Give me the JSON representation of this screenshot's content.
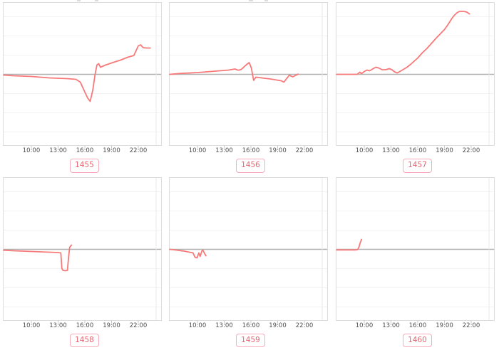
{
  "page": {
    "background": "#ffffff"
  },
  "colors": {
    "line": "#f87979",
    "zero_line": "#b0b0b0",
    "gridline": "#f3f3f3",
    "midnight_gridline": "#e8e8e8",
    "panel_border": "#dddddd",
    "tick_mark": "#c9c9c9",
    "tick_label": "#4d4d4d",
    "badge_border": "#f8abba",
    "badge_text": "#e8606e"
  },
  "chart_data": {
    "type": "line",
    "note": "grid of 6 sparkline charts; y values are relative units (no y-axis labels shown), baseline 0 is the gray center line",
    "x_unit": "hour-of-day",
    "xlim": [
      6.8,
      24.65
    ],
    "ylim": [
      -1,
      1
    ],
    "x_tick_hours": [
      10,
      13,
      16,
      19,
      22
    ],
    "x_tick_labels": [
      "10:00",
      "13:00",
      "16:00",
      "19:00",
      "22:00"
    ],
    "midnight_gridline_hour": 24,
    "h_gridlines_rel": [
      -0.81,
      -0.54,
      -0.27,
      0,
      0.27,
      0.54,
      0.81
    ],
    "legend": "none",
    "series": [
      {
        "badge": "1455",
        "x": [
          6.8,
          8.0,
          10.0,
          12.0,
          14.0,
          15.0,
          15.5,
          16.0,
          16.3,
          16.6,
          16.9,
          17.15,
          17.35,
          17.55,
          17.75,
          18.3,
          19.0,
          20.0,
          20.8,
          21.5,
          22.0,
          22.25,
          22.55,
          22.9,
          23.35
        ],
        "y": [
          -0.01,
          -0.02,
          -0.03,
          -0.05,
          -0.06,
          -0.07,
          -0.11,
          -0.25,
          -0.33,
          -0.38,
          -0.22,
          0.0,
          0.13,
          0.15,
          0.1,
          0.13,
          0.16,
          0.2,
          0.24,
          0.265,
          0.4,
          0.415,
          0.375,
          0.37,
          0.37
        ]
      },
      {
        "badge": "1456",
        "x": [
          6.8,
          8.0,
          10.0,
          12.0,
          13.5,
          14.2,
          14.55,
          14.9,
          15.4,
          15.8,
          16.05,
          16.3,
          16.55,
          16.9,
          17.5,
          18.2,
          18.9,
          19.4,
          19.7,
          20.3,
          20.7,
          21.0,
          21.3
        ],
        "y": [
          0.0,
          0.012,
          0.025,
          0.045,
          0.06,
          0.075,
          0.058,
          0.068,
          0.125,
          0.165,
          0.09,
          -0.085,
          -0.04,
          -0.045,
          -0.055,
          -0.065,
          -0.08,
          -0.09,
          -0.11,
          -0.013,
          -0.035,
          -0.015,
          0.003
        ]
      },
      {
        "badge": "1457",
        "x": [
          6.8,
          8.0,
          9.2,
          9.5,
          9.7,
          10.0,
          10.3,
          10.6,
          11.0,
          11.3,
          11.6,
          12.0,
          12.4,
          12.8,
          13.1,
          13.4,
          13.7,
          14.0,
          14.4,
          14.8,
          15.2,
          15.6,
          16.0,
          16.5,
          17.0,
          17.5,
          18.0,
          18.5,
          19.0,
          19.4,
          19.8,
          20.1,
          20.4,
          20.7,
          21.2,
          21.5,
          21.8
        ],
        "y": [
          0.0,
          0.0,
          0.0,
          0.03,
          0.01,
          0.04,
          0.06,
          0.05,
          0.08,
          0.1,
          0.09,
          0.065,
          0.065,
          0.08,
          0.065,
          0.035,
          0.02,
          0.04,
          0.07,
          0.1,
          0.14,
          0.185,
          0.23,
          0.3,
          0.36,
          0.43,
          0.5,
          0.565,
          0.63,
          0.7,
          0.78,
          0.83,
          0.865,
          0.885,
          0.885,
          0.875,
          0.85
        ]
      },
      {
        "badge": "1458",
        "x": [
          6.8,
          8.0,
          10.0,
          12.0,
          13.0,
          13.3,
          13.42,
          13.55,
          13.8,
          14.05,
          14.18,
          14.3,
          14.5
        ],
        "y": [
          -0.012,
          -0.02,
          -0.03,
          -0.04,
          -0.045,
          -0.05,
          -0.27,
          -0.295,
          -0.3,
          -0.295,
          -0.1,
          0.03,
          0.06
        ]
      },
      {
        "badge": "1459",
        "x": [
          6.8,
          7.6,
          8.5,
          9.2,
          9.5,
          9.72,
          9.95,
          10.15,
          10.3,
          10.5,
          10.62,
          10.8,
          10.95
        ],
        "y": [
          0.0,
          -0.01,
          -0.025,
          -0.042,
          -0.05,
          -0.11,
          -0.12,
          -0.05,
          -0.1,
          -0.02,
          -0.012,
          -0.06,
          -0.09
        ]
      },
      {
        "badge": "1460",
        "x": [
          6.8,
          8.0,
          9.0,
          9.25,
          9.4,
          9.55,
          9.7
        ],
        "y": [
          -0.008,
          -0.008,
          -0.008,
          -0.004,
          0.03,
          0.095,
          0.14
        ]
      }
    ]
  }
}
